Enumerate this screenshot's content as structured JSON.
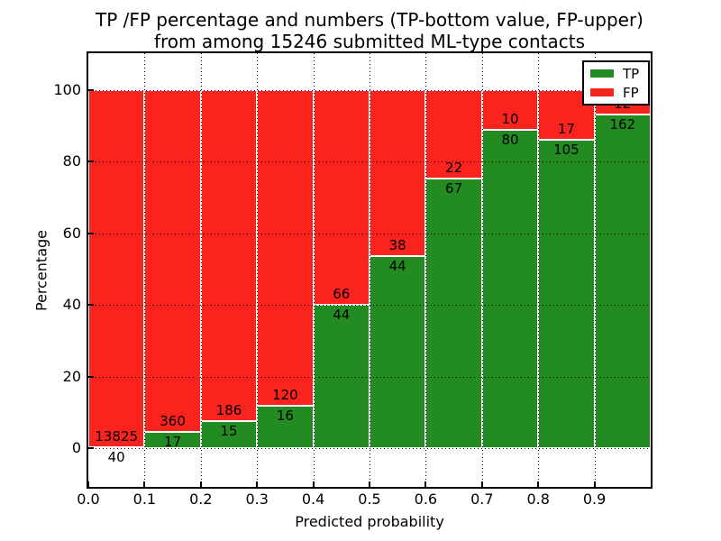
{
  "title": {
    "line1": "TP /FP percentage and numbers (TP-bottom value, FP-upper)",
    "line2": "from among 15246 submitted ML-type contacts"
  },
  "axes": {
    "xlabel": "Predicted probability",
    "ylabel": "Percentage",
    "x_tick_labels": [
      "0.0",
      "0.1",
      "0.2",
      "0.3",
      "0.4",
      "0.5",
      "0.6",
      "0.7",
      "0.8",
      "0.9"
    ],
    "x_tick_values": [
      0.0,
      0.1,
      0.2,
      0.3,
      0.4,
      0.5,
      0.6,
      0.7,
      0.8,
      0.9
    ],
    "y_tick_labels": [
      "0",
      "20",
      "40",
      "60",
      "80",
      "100"
    ],
    "y_tick_values": [
      0,
      20,
      40,
      60,
      80,
      100
    ]
  },
  "legend": {
    "items": [
      {
        "label": "TP",
        "color": "#228b22"
      },
      {
        "label": "FP",
        "color": "#fb231d"
      }
    ]
  },
  "chart_data": {
    "type": "bar",
    "stacked": true,
    "title": "TP /FP percentage and numbers (TP-bottom value, FP-upper) from among 15246 submitted ML-type contacts",
    "xlabel": "Predicted probability",
    "ylabel": "Percentage",
    "total_contacts": 15246,
    "xlim": [
      0.0,
      1.0
    ],
    "ylim": [
      -10.8,
      110.3
    ],
    "grid": true,
    "legend_position": "upper right",
    "bin_edges": [
      0.0,
      0.1,
      0.2,
      0.3,
      0.4,
      0.5,
      0.6,
      0.7,
      0.8,
      0.9,
      1.0
    ],
    "categories": [
      "0.0-0.1",
      "0.1-0.2",
      "0.2-0.3",
      "0.3-0.4",
      "0.4-0.5",
      "0.5-0.6",
      "0.6-0.7",
      "0.7-0.8",
      "0.8-0.9",
      "0.9-1.0"
    ],
    "series": [
      {
        "name": "TP",
        "color": "#228b22",
        "counts": [
          40,
          17,
          15,
          16,
          44,
          44,
          67,
          80,
          105,
          162
        ],
        "percent": [
          0.29,
          4.51,
          7.46,
          11.76,
          40.0,
          53.66,
          75.28,
          88.89,
          86.07,
          93.1
        ]
      },
      {
        "name": "FP",
        "color": "#fb231d",
        "counts": [
          13825,
          360,
          186,
          120,
          66,
          38,
          22,
          10,
          17,
          12
        ],
        "percent": [
          99.71,
          95.49,
          92.54,
          88.24,
          60.0,
          46.34,
          24.72,
          11.11,
          13.93,
          6.9
        ]
      }
    ]
  }
}
